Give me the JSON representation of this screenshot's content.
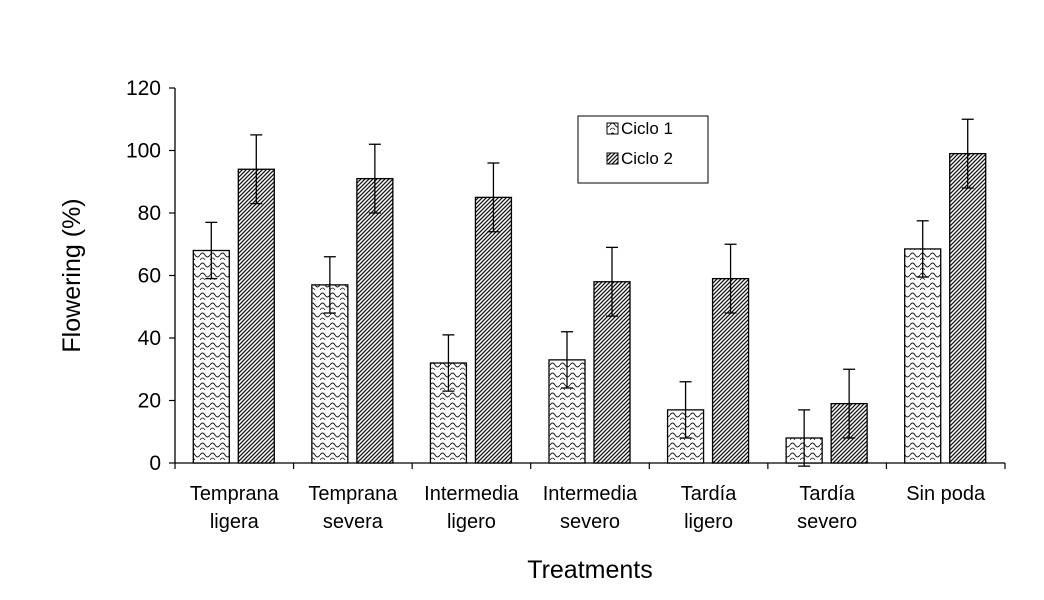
{
  "chart_data": {
    "type": "bar",
    "title": "",
    "xlabel": "Treatments",
    "ylabel": "Flowering (%)",
    "ylim": [
      0,
      120
    ],
    "yticks": [
      0,
      20,
      40,
      60,
      80,
      100,
      120
    ],
    "grid": false,
    "legend_position": "top-center",
    "categories": [
      [
        "Temprana",
        "ligera"
      ],
      [
        "Temprana",
        "severa"
      ],
      [
        "Intermedia",
        "ligero"
      ],
      [
        "Intermedia",
        "severo"
      ],
      [
        "Tardía",
        "ligero"
      ],
      [
        "Tardía",
        "severo"
      ],
      [
        "Sin poda",
        ""
      ]
    ],
    "series": [
      {
        "name": "Ciclo 1",
        "values": [
          68,
          57,
          32,
          33,
          17,
          8,
          68.5
        ],
        "errors": [
          9,
          9,
          9,
          9,
          9,
          9,
          9
        ]
      },
      {
        "name": "Ciclo 2",
        "values": [
          94,
          91,
          85,
          58,
          59,
          19,
          99
        ],
        "errors": [
          11,
          11,
          11,
          11,
          11,
          11,
          11
        ]
      }
    ]
  }
}
